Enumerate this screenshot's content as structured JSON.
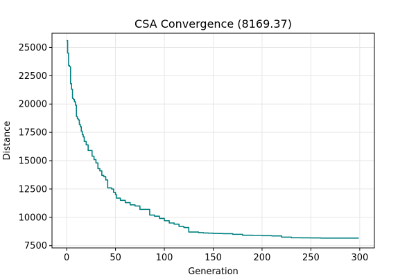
{
  "chart_data": {
    "type": "line",
    "title": "CSA Convergence (8169.37)",
    "xlabel": "Generation",
    "ylabel": "Distance",
    "xlim": [
      -15,
      315
    ],
    "ylim": [
      7300,
      26250
    ],
    "x_ticks": [
      0,
      50,
      100,
      150,
      200,
      250,
      300
    ],
    "y_ticks": [
      7500,
      10000,
      12500,
      15000,
      17500,
      20000,
      22500,
      25000
    ],
    "grid": true,
    "line_color": "#008080",
    "series": [
      {
        "x": [
          0,
          1,
          2,
          3,
          4,
          5,
          6,
          7,
          8,
          9,
          10,
          11,
          12,
          13,
          14,
          15,
          16,
          17,
          18,
          19,
          20,
          22,
          24,
          26,
          28,
          30,
          32,
          34,
          36,
          38,
          40,
          42,
          44,
          46,
          48,
          50,
          51,
          55,
          60,
          65,
          70,
          75,
          80,
          85,
          90,
          95,
          100,
          105,
          110,
          115,
          120,
          125,
          130,
          135,
          140,
          145,
          150,
          155,
          160,
          170,
          180,
          190,
          200,
          210,
          220,
          230,
          240,
          250,
          260,
          270,
          280,
          290,
          299
        ],
        "y": [
          25600,
          24500,
          23400,
          23300,
          21800,
          21300,
          20500,
          20400,
          20200,
          19900,
          18900,
          18700,
          18600,
          18200,
          18000,
          17600,
          17300,
          17100,
          16700,
          16700,
          16400,
          15900,
          15900,
          15400,
          15100,
          14800,
          14300,
          14100,
          13700,
          13600,
          13300,
          12600,
          12600,
          12500,
          12200,
          12000,
          11700,
          11500,
          11300,
          11100,
          11000,
          10700,
          10700,
          10200,
          10100,
          9900,
          9700,
          9500,
          9400,
          9200,
          9100,
          8700,
          8700,
          8650,
          8620,
          8600,
          8580,
          8570,
          8560,
          8500,
          8420,
          8400,
          8380,
          8360,
          8250,
          8200,
          8190,
          8180,
          8170,
          8169.37,
          8169.37,
          8169.37,
          8169.37
        ]
      }
    ]
  }
}
